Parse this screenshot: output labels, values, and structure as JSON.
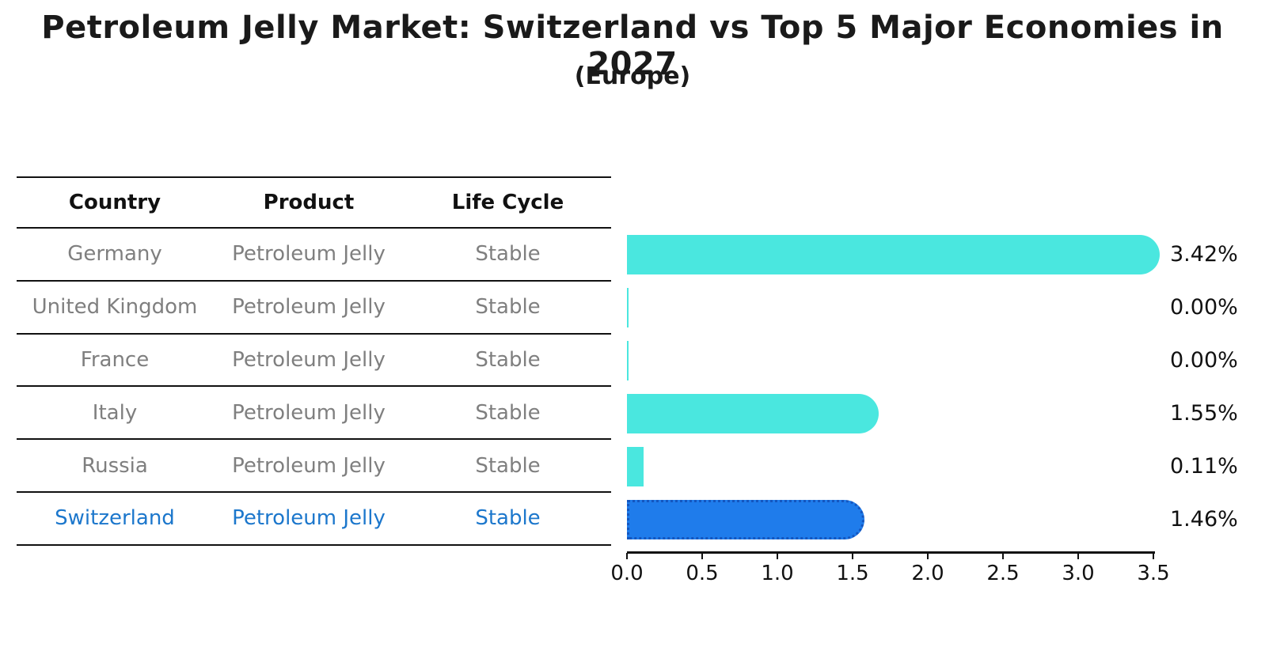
{
  "title": "Petroleum Jelly Market: Switzerland vs Top 5 Major Economies in 2027",
  "subtitle": "(Europe)",
  "table": {
    "headers": [
      "Country",
      "Product",
      "Life Cycle"
    ],
    "rows": [
      {
        "country": "Germany",
        "product": "Petroleum Jelly",
        "life_cycle": "Stable",
        "highlight": false
      },
      {
        "country": "United Kingdom",
        "product": "Petroleum Jelly",
        "life_cycle": "Stable",
        "highlight": false
      },
      {
        "country": "France",
        "product": "Petroleum Jelly",
        "life_cycle": "Stable",
        "highlight": false
      },
      {
        "country": "Italy",
        "product": "Petroleum Jelly",
        "life_cycle": "Stable",
        "highlight": false
      },
      {
        "country": "Russia",
        "product": "Petroleum Jelly",
        "life_cycle": "Stable",
        "highlight": false
      },
      {
        "country": "Switzerland",
        "product": "Petroleum Jelly",
        "life_cycle": "Stable",
        "highlight": true
      }
    ]
  },
  "chart_data": {
    "type": "bar",
    "orientation": "horizontal",
    "categories": [
      "Germany",
      "United Kingdom",
      "France",
      "Italy",
      "Russia",
      "Switzerland"
    ],
    "values": [
      3.42,
      0.0,
      0.0,
      1.55,
      0.11,
      1.46
    ],
    "value_labels": [
      "3.42%",
      "0.00%",
      "0.00%",
      "1.55%",
      "0.11%",
      "1.46%"
    ],
    "highlight_index": 5,
    "xlim": [
      0,
      3.5
    ],
    "x_ticks": [
      0.0,
      0.5,
      1.0,
      1.5,
      2.0,
      2.5,
      3.0,
      3.5
    ],
    "x_tick_labels": [
      "0.0",
      "0.5",
      "1.0",
      "1.5",
      "2.0",
      "2.5",
      "3.0",
      "3.5"
    ],
    "grid": false,
    "legend": false,
    "bar_color": "#4ae7df",
    "highlight_bar_color": "#1f7ceb",
    "highlight_border_color": "#1456bf",
    "value_unit": "%"
  },
  "colors": {
    "title_text": "#1a1a1a",
    "row_text": "#7f7f7f",
    "highlight_text": "#1c77cc",
    "axis": "#111111"
  }
}
